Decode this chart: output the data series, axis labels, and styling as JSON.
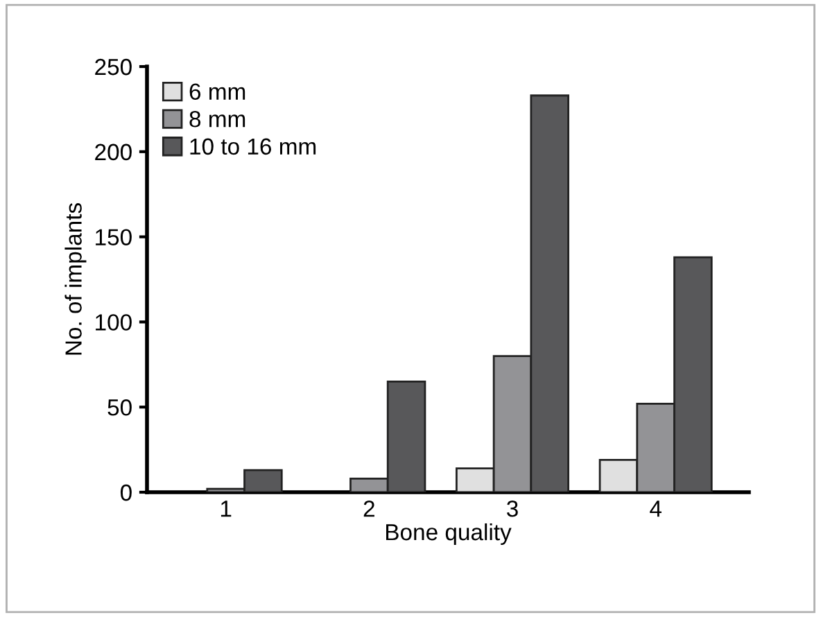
{
  "chart_data": {
    "type": "bar",
    "xlabel": "Bone quality",
    "ylabel": "No. of implants",
    "categories": [
      "1",
      "2",
      "3",
      "4"
    ],
    "series": [
      {
        "name": "6 mm",
        "color": "#e0e0e0",
        "values": [
          null,
          null,
          14,
          19
        ]
      },
      {
        "name": "8 mm",
        "color": "#939396",
        "values": [
          2,
          8,
          80,
          52
        ]
      },
      {
        "name": "10 to 16 mm",
        "color": "#58585a",
        "values": [
          13,
          65,
          233,
          138
        ]
      }
    ],
    "ylim": [
      0,
      250
    ],
    "yticks": [
      0,
      50,
      100,
      150,
      200,
      250
    ],
    "grid": false,
    "legend": "top left"
  }
}
